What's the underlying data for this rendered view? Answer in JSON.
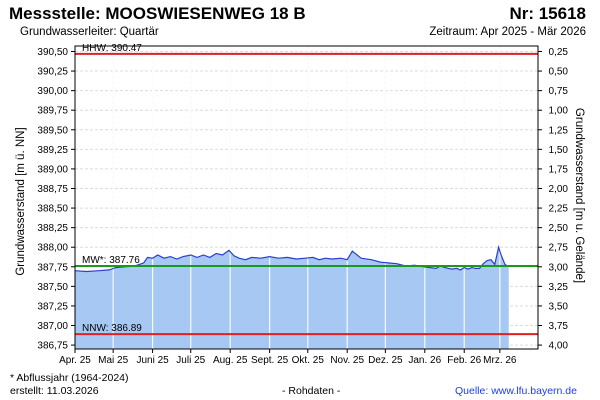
{
  "header": {
    "title": "Messstelle: MOOSWIESENWEG 18 B",
    "number": "Nr: 15618",
    "aquifer": "Grundwasserleiter: Quartär",
    "period": "Zeitraum: Apr 2025 - Mär 2026"
  },
  "footer": {
    "footnote": "* Abflussjahr (1964-2024)",
    "created": "erstellt:  11.03.2026",
    "raw": "- Rohdaten -",
    "source_label": "Quelle: ",
    "source_url": "www.lfu.bayern.de"
  },
  "chart_data": {
    "type": "area",
    "ylabel": "Grundwasserstand [m ü. NN]",
    "ylabel_right": "Grundwasserstand [m u. Gelände]",
    "ylim": [
      386.7,
      390.57
    ],
    "right_offset": 390.75,
    "ytick_values": [
      386.75,
      387.0,
      387.25,
      387.5,
      387.75,
      388.0,
      388.25,
      388.5,
      388.75,
      389.0,
      389.25,
      389.5,
      389.75,
      390.0,
      390.25,
      390.5
    ],
    "yticks": [
      "386,75",
      "387,00",
      "387,25",
      "387,50",
      "387,75",
      "388,00",
      "388,25",
      "388,50",
      "388,75",
      "389,00",
      "389,25",
      "389,50",
      "389,75",
      "390,00",
      "390,25",
      "390,50"
    ],
    "ytick_right_values": [
      0.25,
      0.5,
      0.75,
      1.0,
      1.25,
      1.5,
      1.75,
      2.0,
      2.25,
      2.5,
      2.75,
      3.0,
      3.25,
      3.5,
      3.75,
      4.0
    ],
    "yticks_right": [
      "0,25",
      "0,50",
      "0,75",
      "1,00",
      "1,25",
      "1,50",
      "1,75",
      "2,00",
      "2,25",
      "2,50",
      "2,75",
      "3,00",
      "3,25",
      "3,50",
      "3,75",
      "4,00"
    ],
    "xlim": [
      "2025-04-01",
      "2026-03-31"
    ],
    "xtick_dates": [
      "2025-04-01",
      "2025-05-01",
      "2025-06-01",
      "2025-07-01",
      "2025-08-01",
      "2025-09-01",
      "2025-10-01",
      "2025-11-01",
      "2025-12-01",
      "2026-01-01",
      "2026-02-01",
      "2026-03-01"
    ],
    "xticks": [
      "Apr. 25",
      "Mai 25",
      "Juni 25",
      "Juli 25",
      "Aug. 25",
      "Sept. 25",
      "Okt. 25",
      "Nov. 25",
      "Dez. 25",
      "Jan. 26",
      "Feb. 26",
      "Mrz. 26"
    ],
    "grid": true,
    "reference_lines": [
      {
        "label": "HHW: 390.47",
        "value": 390.47,
        "color": "#e02020"
      },
      {
        "label": "MW*: 387.76",
        "value": 387.76,
        "color": "#1a9a1a"
      },
      {
        "label": "NNW: 386.89",
        "value": 386.89,
        "color": "#e02020"
      }
    ],
    "fill_color": "#a6c8f2",
    "line_color": "#2a3fcf",
    "series": [
      {
        "x": [
          "2025-04-01",
          "2025-04-10",
          "2025-04-20",
          "2025-04-28",
          "2025-05-03",
          "2025-05-10",
          "2025-05-18",
          "2025-05-25",
          "2025-05-28",
          "2025-06-01",
          "2025-06-05",
          "2025-06-10",
          "2025-06-15",
          "2025-06-20",
          "2025-06-25",
          "2025-07-01",
          "2025-07-06",
          "2025-07-11",
          "2025-07-16",
          "2025-07-21",
          "2025-07-26",
          "2025-07-31",
          "2025-08-04",
          "2025-08-08",
          "2025-08-13",
          "2025-08-18",
          "2025-08-25",
          "2025-09-01",
          "2025-09-08",
          "2025-09-15",
          "2025-09-22",
          "2025-09-29",
          "2025-10-05",
          "2025-10-10",
          "2025-10-15",
          "2025-10-20",
          "2025-10-27",
          "2025-11-01",
          "2025-11-05",
          "2025-11-12",
          "2025-11-20",
          "2025-11-27",
          "2025-12-03",
          "2025-12-10",
          "2025-12-17",
          "2025-12-24",
          "2025-12-31",
          "2026-01-05",
          "2026-01-10",
          "2026-01-13",
          "2026-01-17",
          "2026-01-22",
          "2026-01-26",
          "2026-01-29",
          "2026-02-01",
          "2026-02-04",
          "2026-02-07",
          "2026-02-10",
          "2026-02-13",
          "2026-02-16",
          "2026-02-19",
          "2026-02-22",
          "2026-02-25",
          "2026-02-28",
          "2026-03-02",
          "2026-03-05",
          "2026-03-08"
        ],
        "values": [
          387.7,
          387.69,
          387.7,
          387.71,
          387.74,
          387.75,
          387.76,
          387.8,
          387.87,
          387.86,
          387.9,
          387.86,
          387.88,
          387.85,
          387.88,
          387.9,
          387.87,
          387.9,
          387.87,
          387.92,
          387.9,
          387.96,
          387.89,
          387.86,
          387.84,
          387.87,
          387.86,
          387.88,
          387.86,
          387.87,
          387.85,
          387.86,
          387.87,
          387.84,
          387.86,
          387.85,
          387.86,
          387.84,
          387.95,
          387.86,
          387.84,
          387.81,
          387.8,
          387.79,
          387.76,
          387.77,
          387.75,
          387.74,
          387.73,
          387.76,
          387.74,
          387.72,
          387.73,
          387.71,
          387.74,
          387.72,
          387.74,
          387.73,
          387.73,
          387.79,
          387.83,
          387.84,
          387.78,
          388.0,
          387.9,
          387.78,
          387.75
        ]
      }
    ]
  }
}
